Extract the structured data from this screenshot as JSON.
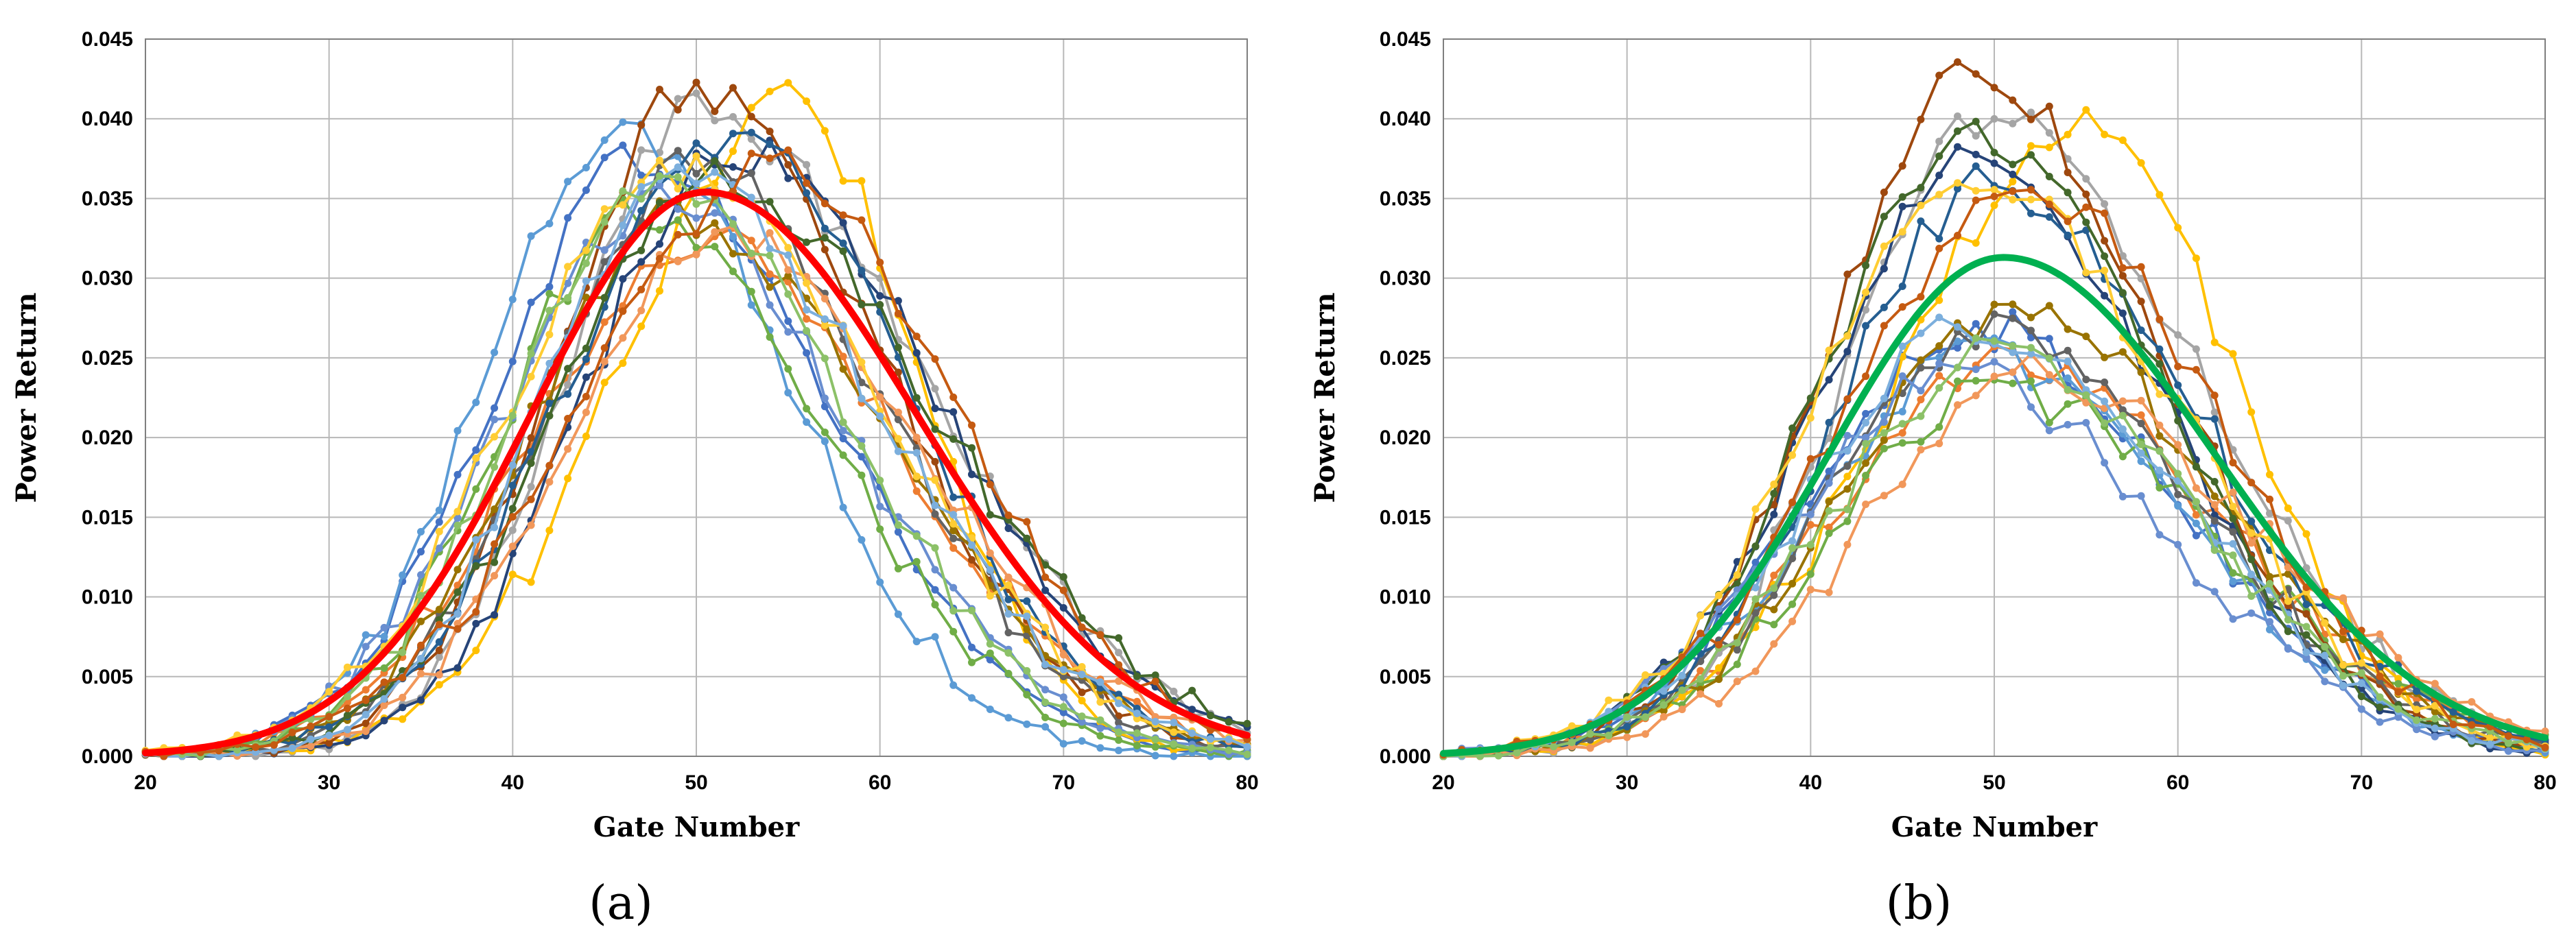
{
  "chart_data": [
    {
      "type": "line",
      "panel_label": "(a)",
      "title": "",
      "xlabel": "Gate Number",
      "ylabel": "Power Return",
      "xlim": [
        20,
        80
      ],
      "ylim": [
        0,
        0.045
      ],
      "x_ticks": [
        "20",
        "30",
        "40",
        "50",
        "60",
        "70",
        "80"
      ],
      "y_ticks": [
        "0.000",
        "0.005",
        "0.010",
        "0.015",
        "0.020",
        "0.025",
        "0.030",
        "0.035",
        "0.040",
        "0.045"
      ],
      "grid": true,
      "mean_curve": {
        "name": "mean",
        "color": "#ff0000",
        "peak_x": 50.5,
        "peak": 0.0354,
        "sigma_left": 9.5,
        "sigma_right": 11.5
      },
      "series": [
        {
          "color": "#4472c4",
          "peak_x": 47,
          "peak": 0.0375,
          "sigma_left": 8,
          "sigma_right": 10
        },
        {
          "color": "#ed7d31",
          "peak_x": 50,
          "peak": 0.0325,
          "sigma_left": 9,
          "sigma_right": 11
        },
        {
          "color": "#a5a5a5",
          "peak_x": 50,
          "peak": 0.0405,
          "sigma_left": 7,
          "sigma_right": 12
        },
        {
          "color": "#ffc000",
          "peak_x": 55,
          "peak": 0.041,
          "sigma_left": 9,
          "sigma_right": 7
        },
        {
          "color": "#5b9bd5",
          "peak_x": 46,
          "peak": 0.0395,
          "sigma_left": 7.5,
          "sigma_right": 9
        },
        {
          "color": "#70ad47",
          "peak_x": 47,
          "peak": 0.0345,
          "sigma_left": 7.5,
          "sigma_right": 10
        },
        {
          "color": "#264478",
          "peak_x": 52,
          "peak": 0.038,
          "sigma_left": 8,
          "sigma_right": 11
        },
        {
          "color": "#9e480e",
          "peak_x": 50,
          "peak": 0.042,
          "sigma_left": 7.5,
          "sigma_right": 10
        },
        {
          "color": "#636363",
          "peak_x": 50,
          "peak": 0.037,
          "sigma_left": 8,
          "sigma_right": 10
        },
        {
          "color": "#997300",
          "peak_x": 49,
          "peak": 0.034,
          "sigma_left": 8,
          "sigma_right": 11
        },
        {
          "color": "#255e91",
          "peak_x": 52,
          "peak": 0.0385,
          "sigma_left": 9,
          "sigma_right": 9.5
        },
        {
          "color": "#43682b",
          "peak_x": 51,
          "peak": 0.036,
          "sigma_left": 8.5,
          "sigma_right": 12
        },
        {
          "color": "#698ed0",
          "peak_x": 48,
          "peak": 0.035,
          "sigma_left": 8.5,
          "sigma_right": 10
        },
        {
          "color": "#f1975a",
          "peak_x": 51,
          "peak": 0.033,
          "sigma_left": 8,
          "sigma_right": 11
        },
        {
          "color": "#ffcd33",
          "peak_x": 49,
          "peak": 0.037,
          "sigma_left": 9,
          "sigma_right": 11
        },
        {
          "color": "#7cafdd",
          "peak_x": 49,
          "peak": 0.036,
          "sigma_left": 7.5,
          "sigma_right": 11
        },
        {
          "color": "#8cc168",
          "peak_x": 48,
          "peak": 0.036,
          "sigma_left": 8,
          "sigma_right": 10
        },
        {
          "color": "#c55a11",
          "peak_x": 54,
          "peak": 0.037,
          "sigma_left": 10,
          "sigma_right": 10
        }
      ]
    },
    {
      "type": "line",
      "panel_label": "(b)",
      "title": "",
      "xlabel": "Gate Number",
      "ylabel": "Power Return",
      "xlim": [
        20,
        80
      ],
      "ylim": [
        0,
        0.045
      ],
      "x_ticks": [
        "20",
        "30",
        "40",
        "50",
        "60",
        "70",
        "80"
      ],
      "y_ticks": [
        "0.000",
        "0.005",
        "0.010",
        "0.015",
        "0.020",
        "0.025",
        "0.030",
        "0.035",
        "0.040",
        "0.045"
      ],
      "grid": true,
      "mean_curve": {
        "name": "mean",
        "color": "#00b050",
        "peak_x": 50.5,
        "peak": 0.0313,
        "sigma_left": 9.5,
        "sigma_right": 11.5
      },
      "series": [
        {
          "color": "#4472c4",
          "peak_x": 49,
          "peak": 0.027,
          "sigma_left": 9,
          "sigma_right": 11
        },
        {
          "color": "#ed7d31",
          "peak_x": 50,
          "peak": 0.025,
          "sigma_left": 9,
          "sigma_right": 12
        },
        {
          "color": "#a5a5a5",
          "peak_x": 50,
          "peak": 0.04,
          "sigma_left": 8,
          "sigma_right": 11
        },
        {
          "color": "#ffc000",
          "peak_x": 55,
          "peak": 0.04,
          "sigma_left": 10,
          "sigma_right": 8
        },
        {
          "color": "#5b9bd5",
          "peak_x": 49,
          "peak": 0.025,
          "sigma_left": 9,
          "sigma_right": 11
        },
        {
          "color": "#70ad47",
          "peak_x": 50,
          "peak": 0.023,
          "sigma_left": 9,
          "sigma_right": 12
        },
        {
          "color": "#264478",
          "peak_x": 49,
          "peak": 0.0375,
          "sigma_left": 8.5,
          "sigma_right": 10
        },
        {
          "color": "#9e480e",
          "peak_x": 49,
          "peak": 0.043,
          "sigma_left": 8,
          "sigma_right": 10
        },
        {
          "color": "#636363",
          "peak_x": 50,
          "peak": 0.0265,
          "sigma_left": 9,
          "sigma_right": 11
        },
        {
          "color": "#997300",
          "peak_x": 51,
          "peak": 0.028,
          "sigma_left": 9,
          "sigma_right": 11
        },
        {
          "color": "#255e91",
          "peak_x": 50,
          "peak": 0.036,
          "sigma_left": 8.5,
          "sigma_right": 11
        },
        {
          "color": "#43682b",
          "peak_x": 49,
          "peak": 0.039,
          "sigma_left": 8.5,
          "sigma_right": 10
        },
        {
          "color": "#698ed0",
          "peak_x": 48,
          "peak": 0.024,
          "sigma_left": 9,
          "sigma_right": 11
        },
        {
          "color": "#f1975a",
          "peak_x": 52,
          "peak": 0.024,
          "sigma_left": 9,
          "sigma_right": 12
        },
        {
          "color": "#ffcd33",
          "peak_x": 49,
          "peak": 0.036,
          "sigma_left": 9,
          "sigma_right": 11
        },
        {
          "color": "#7cafdd",
          "peak_x": 49,
          "peak": 0.027,
          "sigma_left": 9,
          "sigma_right": 11
        },
        {
          "color": "#8cc168",
          "peak_x": 50,
          "peak": 0.025,
          "sigma_left": 9,
          "sigma_right": 11
        },
        {
          "color": "#c55a11",
          "peak_x": 52,
          "peak": 0.0355,
          "sigma_left": 10,
          "sigma_right": 10
        }
      ]
    }
  ]
}
